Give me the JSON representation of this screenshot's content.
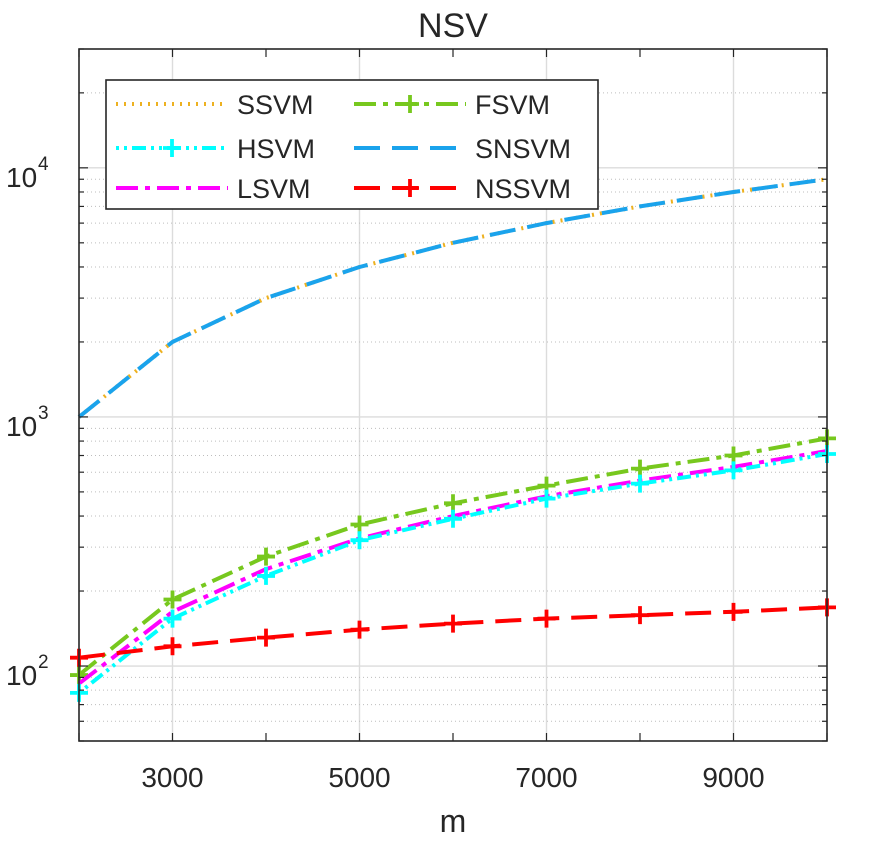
{
  "chart_data": {
    "type": "line",
    "title": "NSV",
    "xlabel": "m",
    "ylabel": "",
    "yscale": "log",
    "xlim": [
      2000,
      10000
    ],
    "ylim": [
      50,
      30000
    ],
    "x": [
      2000,
      3000,
      4000,
      5000,
      6000,
      7000,
      8000,
      9000,
      10000
    ],
    "x_ticks": [
      {
        "value": 3000,
        "label": "3000"
      },
      {
        "value": 5000,
        "label": "5000"
      },
      {
        "value": 7000,
        "label": "7000"
      },
      {
        "value": 9000,
        "label": "9000"
      }
    ],
    "y_ticks": [
      {
        "value": 100,
        "base": "10",
        "exp": "2"
      },
      {
        "value": 1000,
        "base": "10",
        "exp": "3"
      },
      {
        "value": 10000,
        "base": "10",
        "exp": "4"
      }
    ],
    "grid": true,
    "legend_position": "top-left",
    "series": [
      {
        "name": "SSVM",
        "color": "#EDB120",
        "dash": "2 6",
        "marker": "none",
        "width": 4,
        "values": [
          1000,
          2000,
          3000,
          4000,
          5000,
          6000,
          7000,
          8000,
          9000
        ]
      },
      {
        "name": "HSVM",
        "color": "#00FFFF",
        "dash": "3 5 3 5 14 5",
        "marker": "plus",
        "width": 4,
        "values": [
          78,
          155,
          230,
          320,
          390,
          470,
          540,
          610,
          710
        ]
      },
      {
        "name": "LSVM",
        "color": "#FF00FF",
        "dash": "22 7 5 7",
        "marker": "none",
        "width": 4,
        "values": [
          85,
          165,
          245,
          325,
          400,
          480,
          555,
          630,
          730
        ]
      },
      {
        "name": "FSVM",
        "color": "#77C81E",
        "dash": "22 7 5 7",
        "marker": "plus",
        "width": 4,
        "values": [
          92,
          185,
          275,
          370,
          450,
          530,
          620,
          700,
          820
        ]
      },
      {
        "name": "SNSVM",
        "color": "#1AA3EC",
        "dash": "26 12",
        "marker": "none",
        "width": 4,
        "values": [
          1000,
          2000,
          3000,
          4000,
          5000,
          6000,
          7000,
          8000,
          9000
        ]
      },
      {
        "name": "NSSVM",
        "color": "#FF0000",
        "dash": "26 12",
        "marker": "plus",
        "width": 4,
        "values": [
          108,
          120,
          130,
          140,
          148,
          155,
          160,
          165,
          172
        ]
      }
    ]
  }
}
